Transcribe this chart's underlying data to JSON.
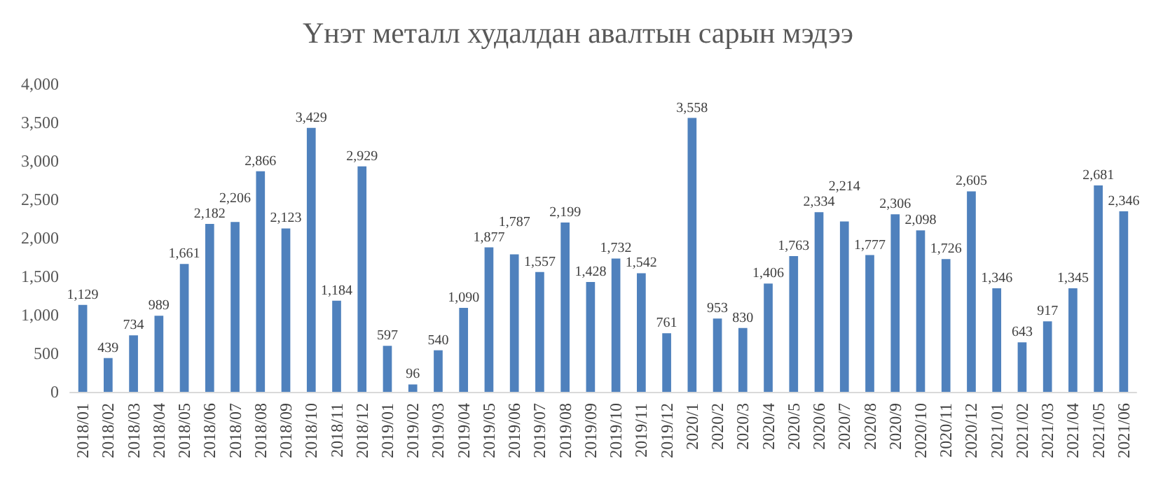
{
  "chart_data": {
    "type": "bar",
    "title": "Үнэт металл худалдан авалтын сарын мэдээ",
    "categories": [
      "2018/01",
      "2018/02",
      "2018/03",
      "2018/04",
      "2018/05",
      "2018/06",
      "2018/07",
      "2018/08",
      "2018/09",
      "2018/10",
      "2018/11",
      "2018/12",
      "2019/01",
      "2019/02",
      "2019/03",
      "2019/04",
      "2019/05",
      "2019/06",
      "2019/07",
      "2019/08",
      "2019/09",
      "2019/10",
      "2019/11",
      "2019/12",
      "2020/1",
      "2020/2",
      "2020/3",
      "2020/4",
      "2020/5",
      "2020/6",
      "2020/7",
      "2020/8",
      "2020/9",
      "2020/10",
      "2020/11",
      "2020/12",
      "2021/01",
      "2021/02",
      "2021/03",
      "2021/04",
      "2021/05",
      "2021/06"
    ],
    "values": [
      1129,
      439,
      734,
      989,
      1661,
      2182,
      2206,
      2866,
      2123,
      3429,
      1184,
      2929,
      597,
      96,
      540,
      1090,
      1877,
      1787,
      1557,
      2199,
      1428,
      1732,
      1542,
      761,
      3558,
      953,
      830,
      1406,
      1763,
      2334,
      2214,
      1777,
      2306,
      2098,
      1726,
      2605,
      1346,
      643,
      917,
      1345,
      2681,
      2346
    ],
    "value_labels": [
      "1,129",
      "439",
      "734",
      "989",
      "1,661",
      "2,182",
      "2,206",
      "2,866",
      "2,123",
      "3,429",
      "1,184",
      "2,929",
      "597",
      "96",
      "540",
      "1,090",
      "1,877",
      "1,787",
      "1,557",
      "2,199",
      "1,428",
      "1,732",
      "1,542",
      "761",
      "3,558",
      "953",
      "830",
      "1,406",
      "1,763",
      "2,334",
      "2,214",
      "1,777",
      "2,306",
      "2,098",
      "1,726",
      "2,605",
      "1,346",
      "643",
      "917",
      "1,345",
      "2,681",
      "2,346"
    ],
    "color": "#4f81bd",
    "ylim": [
      0,
      4000
    ],
    "yticks": [
      0,
      500,
      {
        "value": 1000,
        "label": "1,000"
      },
      {
        "value": 1500,
        "label": "1,500"
      },
      {
        "value": 2000,
        "label": "2,000"
      },
      {
        "value": 2500,
        "label": "2,500"
      },
      {
        "value": 3000,
        "label": "3,000"
      },
      {
        "value": 3500,
        "label": "3,500"
      },
      {
        "value": 4000,
        "label": "4,000"
      }
    ],
    "grid": false
  }
}
